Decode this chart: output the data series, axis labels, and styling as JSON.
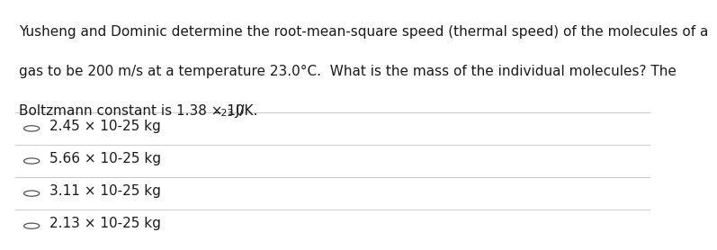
{
  "background_color": "#ffffff",
  "question_lines": [
    "Yusheng and Dominic determine the root-mean-square speed (thermal speed) of the molecules of a",
    "gas to be 200 m/s at a temperature 23.0°C.  What is the mass of the individual molecules? The",
    "Boltzmann constant is 1.38 × 10"
  ],
  "boltzmann_superscript": "−23",
  "boltzmann_suffix": " J/K.",
  "choices": [
    "2.45 × 10-25 kg",
    "5.66 × 10-25 kg",
    "3.11 × 10-25 kg",
    "2.13 × 10-25 kg"
  ],
  "text_color": "#1a1a1a",
  "line_color": "#cccccc",
  "font_size": 11,
  "choice_font_size": 11,
  "fig_width": 7.19,
  "fig_height": 2.58
}
